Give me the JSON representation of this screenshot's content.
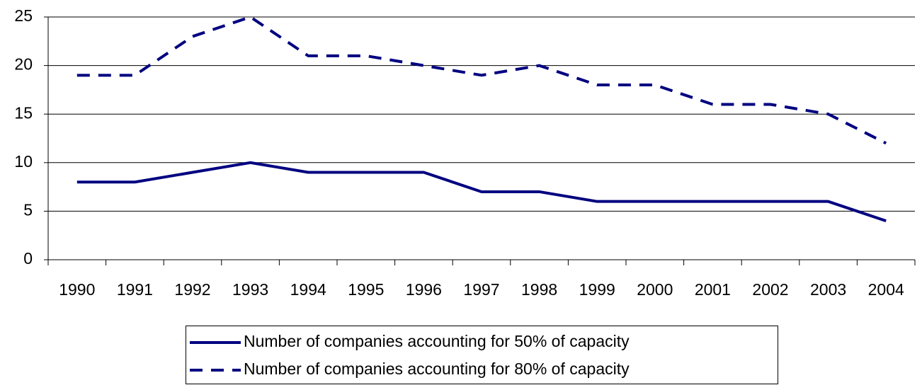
{
  "chart_data": {
    "type": "line",
    "categories": [
      "1990",
      "1991",
      "1992",
      "1993",
      "1994",
      "1995",
      "1996",
      "1997",
      "1998",
      "1999",
      "2000",
      "2001",
      "2002",
      "2003",
      "2004"
    ],
    "series": [
      {
        "name": "Number of companies accounting for 50% of capacity",
        "color": "#000080",
        "line_style": "solid",
        "values": [
          8,
          8,
          9,
          10,
          9,
          9,
          9,
          7,
          7,
          6,
          6,
          6,
          6,
          6,
          4
        ]
      },
      {
        "name": "Number of companies accounting for 80% of capacity",
        "color": "#000080",
        "line_style": "dashed",
        "values": [
          19,
          19,
          23,
          25,
          21,
          21,
          20,
          19,
          20,
          18,
          18,
          16,
          16,
          15,
          12
        ]
      }
    ],
    "ylim": [
      0,
      25
    ],
    "yticks": [
      0,
      5,
      10,
      15,
      20,
      25
    ],
    "grid": true,
    "legend": "bottom"
  }
}
